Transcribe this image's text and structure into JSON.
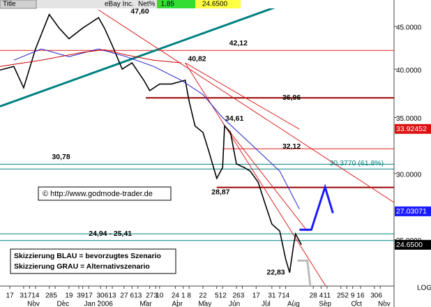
{
  "header": {
    "title": "Title",
    "symbol": "eBay Inc.",
    "change_label": "Net%",
    "change": 1.85,
    "last": "24.6500"
  },
  "copyright": "© http://www.godmode-trader.de",
  "notes": [
    "Skizzierung BLAU = bevorzugtes Szenario",
    "Skizzierung GRAU = Alternativszenario"
  ],
  "scale_label": "LOG",
  "chart_data": {
    "type": "line",
    "log_scale": true,
    "xlim": [
      0,
      200
    ],
    "ylim": [
      22,
      48.4
    ],
    "yticks": [
      {
        "value": 25,
        "label": "25.0000"
      },
      {
        "value": 30,
        "label": "30.0000"
      },
      {
        "value": 35,
        "label": "35.0000"
      },
      {
        "value": 40,
        "label": "40.0000"
      },
      {
        "value": 45,
        "label": "45.0000"
      }
    ],
    "xticks": [
      {
        "value": 5,
        "label": "17"
      },
      {
        "value": 12,
        "label": "31"
      },
      {
        "value": 15,
        "label": "7"
      },
      {
        "value": 18,
        "label": "14"
      },
      {
        "value": 25,
        "label": "28"
      },
      {
        "value": 28,
        "label": "5"
      },
      {
        "value": 35,
        "label": "19"
      },
      {
        "value": 40,
        "label": "3"
      },
      {
        "value": 42,
        "label": "9"
      },
      {
        "value": 45,
        "label": "17"
      },
      {
        "value": 51,
        "label": "30"
      },
      {
        "value": 54,
        "label": "6"
      },
      {
        "value": 57,
        "label": "13"
      },
      {
        "value": 63,
        "label": "27"
      },
      {
        "value": 67,
        "label": "6"
      },
      {
        "value": 70,
        "label": "13"
      },
      {
        "value": 76,
        "label": "27"
      },
      {
        "value": 79,
        "label": "3"
      },
      {
        "value": 81,
        "label": "10"
      },
      {
        "value": 89,
        "label": "24"
      },
      {
        "value": 93,
        "label": "1"
      },
      {
        "value": 96,
        "label": "8"
      },
      {
        "value": 103,
        "label": "22"
      },
      {
        "value": 110,
        "label": "5"
      },
      {
        "value": 113,
        "label": "12"
      },
      {
        "value": 120,
        "label": "26"
      },
      {
        "value": 123,
        "label": "3"
      },
      {
        "value": 130,
        "label": "17"
      },
      {
        "value": 138,
        "label": "31"
      },
      {
        "value": 142,
        "label": "7"
      },
      {
        "value": 145,
        "label": "14"
      },
      {
        "value": 159,
        "label": "28"
      },
      {
        "value": 163,
        "label": "4"
      },
      {
        "value": 166,
        "label": "11"
      },
      {
        "value": 173,
        "label": "25"
      },
      {
        "value": 176,
        "label": "2"
      },
      {
        "value": 179,
        "label": "9"
      },
      {
        "value": 183,
        "label": "16"
      },
      {
        "value": 190,
        "label": "30"
      },
      {
        "value": 193,
        "label": "6"
      }
    ],
    "month_ticks": [
      {
        "value": 17,
        "label": "Nov"
      },
      {
        "value": 32,
        "label": "Dec"
      },
      {
        "value": 50,
        "label": "Jan 2006"
      },
      {
        "value": 74,
        "label": "Mar"
      },
      {
        "value": 90,
        "label": "Apr"
      },
      {
        "value": 104,
        "label": "May"
      },
      {
        "value": 119,
        "label": "Jun"
      },
      {
        "value": 135,
        "label": "Jul"
      },
      {
        "value": 149,
        "label": "Aug"
      },
      {
        "value": 165,
        "label": "Sep"
      },
      {
        "value": 181,
        "label": "Oct"
      },
      {
        "value": 195,
        "label": "Nov"
      }
    ],
    "series": [
      {
        "color": "#000000",
        "x": [
          0,
          7,
          12,
          18,
          25,
          30,
          35,
          42,
          50,
          53,
          57,
          62,
          67,
          73,
          76,
          81,
          87,
          94,
          96,
          99,
          103,
          106,
          110,
          113,
          114,
          117,
          120,
          124,
          127,
          131,
          135,
          138,
          142,
          145,
          147,
          149,
          150,
          153
        ],
        "values": [
          39.9,
          40.3,
          38.0,
          42.3,
          46.5,
          44.8,
          43.5,
          44.8,
          46.1,
          44.8,
          42.7,
          40.0,
          40.7,
          38.8,
          37.7,
          38.4,
          38.4,
          38.8,
          36.6,
          34.2,
          33.6,
          31.9,
          29.6,
          30.5,
          34.2,
          33.6,
          30.8,
          30.5,
          30.2,
          29.3,
          27.4,
          26.1,
          25.6,
          23.7,
          22.83,
          24.6,
          25.4,
          24.65
        ]
      },
      {
        "color": "#1f1fcc",
        "x": [
          7,
          21,
          35,
          50,
          64,
          78,
          92,
          103,
          113,
          127,
          142,
          152
        ],
        "values": [
          41.0,
          42.3,
          41.4,
          42.3,
          41.4,
          40.3,
          38.8,
          37.3,
          35.0,
          32.6,
          30.2,
          27.2
        ]
      },
      {
        "color": "#cc0000",
        "x": [
          0,
          21,
          42,
          53,
          64,
          78,
          92
        ],
        "values": [
          40.3,
          41.0,
          41.9,
          42.2,
          41.6,
          41.0,
          40.7
        ]
      }
    ],
    "levels": [
      {
        "value": 47.6,
        "color": "#dd2222",
        "x": [
          0,
          200
        ]
      },
      {
        "value": 42.12,
        "color": "#dd2222",
        "x": [
          0,
          200
        ]
      },
      {
        "value": 36.96,
        "color": "#990000",
        "x": [
          74,
          200
        ]
      },
      {
        "value": 32.12,
        "color": "#dd2222",
        "x": [
          113,
          200
        ]
      },
      {
        "value": 28.87,
        "color": "#990000",
        "x": [
          110,
          200
        ]
      },
      {
        "value": 30.78,
        "color": "#008080",
        "x": [
          0,
          200
        ]
      },
      {
        "value": 30.377,
        "color": "#008080",
        "x": [
          0,
          200
        ]
      },
      {
        "value": 25.41,
        "color": "#008080",
        "x": [
          0,
          200
        ]
      },
      {
        "value": 24.94,
        "color": "#008080",
        "x": [
          0,
          200
        ]
      }
    ],
    "trendlines": [
      {
        "color": "#008080",
        "x": [
          0,
          150
        ],
        "y": [
          36.1,
          48.4
        ]
      },
      {
        "color": "#dd2222",
        "x": [
          50,
          200
        ],
        "y": [
          47.1,
          27.7
        ]
      },
      {
        "color": "#dd2222",
        "x": [
          94,
          152
        ],
        "y": [
          40.7,
          33.9
        ]
      },
      {
        "color": "#dd2222",
        "x": [
          94,
          168
        ],
        "y": [
          40.7,
          21.5
        ]
      },
      {
        "color": "#dd2222",
        "x": [
          113,
          156
        ],
        "y": [
          34.5,
          25.6
        ]
      }
    ],
    "scenarios": [
      {
        "color": "#1a1aff",
        "x": [
          152,
          158,
          165,
          169
        ],
        "y": [
          25.7,
          25.7,
          28.9,
          26.9
        ]
      },
      {
        "color": "#bbbbbb",
        "x": [
          151,
          156,
          158
        ],
        "y": [
          23.6,
          23.6,
          21.5
        ]
      }
    ],
    "annotations": [
      {
        "label": "47,60",
        "x": 71,
        "y": 47.6
      },
      {
        "label": "42,12",
        "x": 121,
        "y": 42.12
      },
      {
        "label": "40,82",
        "x": 100,
        "y": 40.82
      },
      {
        "label": "36,96",
        "x": 148,
        "y": 36.96
      },
      {
        "label": "34,61",
        "x": 119,
        "y": 34.61
      },
      {
        "label": "32,12",
        "x": 148,
        "y": 32.12
      },
      {
        "label": "30,78",
        "x": 31,
        "y": 30.78
      },
      {
        "label": "30.3770 (61.8%)",
        "x": 181,
        "y": 30.377
      },
      {
        "label": "28,87",
        "x": 112,
        "y": 28.87
      },
      {
        "label": "24,94 - 25,41",
        "x": 56,
        "y": 25.41
      },
      {
        "label": "22,83",
        "x": 140,
        "y": 22.83
      }
    ],
    "price_tags": [
      {
        "value": 33.92452,
        "color": "#dd1111"
      },
      {
        "value": 27.03071,
        "color": "#1a1aff"
      },
      {
        "value": 24.65,
        "label": "24.6500",
        "color": "#000000"
      }
    ]
  }
}
